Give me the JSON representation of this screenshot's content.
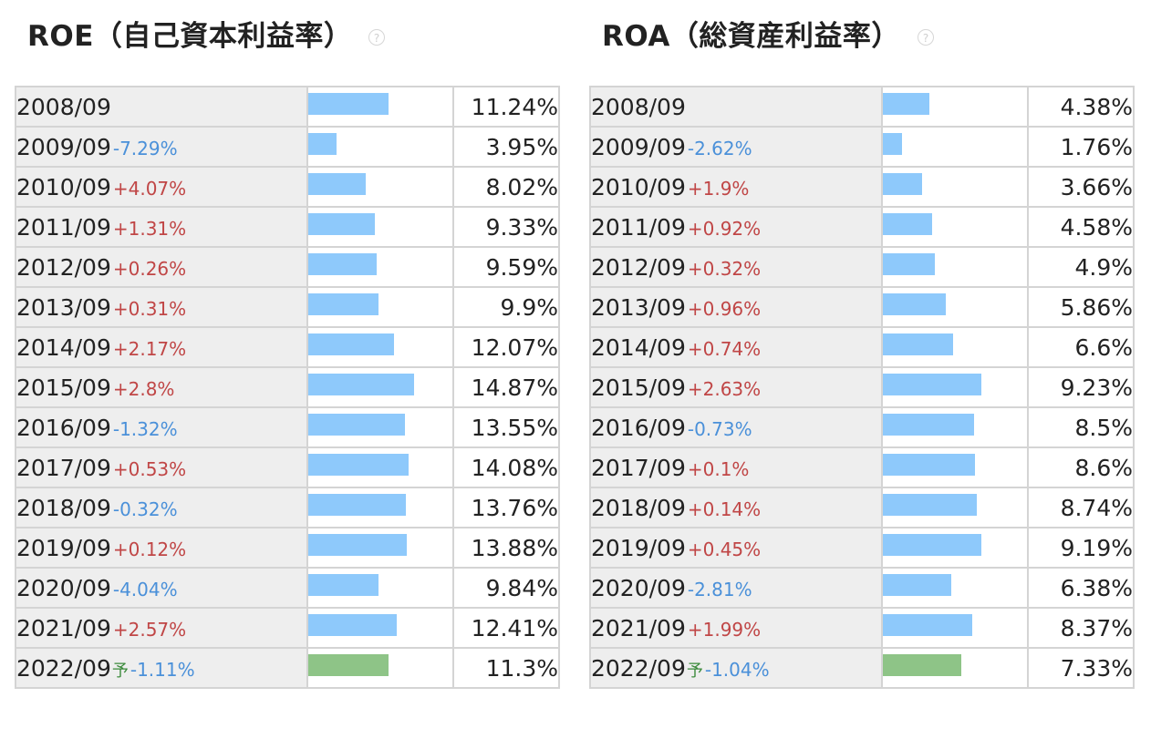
{
  "panels": [
    {
      "id": "roe",
      "title": "ROE（自己資本利益率）",
      "help": "?",
      "bar_max": 20,
      "rows": [
        {
          "year": "2008/09",
          "change": "",
          "dir": "",
          "value": "11.24%",
          "num": 11.24,
          "forecast": false,
          "forecast_mark": ""
        },
        {
          "year": "2009/09",
          "change": "-7.29%",
          "dir": "down",
          "value": "3.95%",
          "num": 3.95,
          "forecast": false,
          "forecast_mark": ""
        },
        {
          "year": "2010/09",
          "change": "+4.07%",
          "dir": "up",
          "value": "8.02%",
          "num": 8.02,
          "forecast": false,
          "forecast_mark": ""
        },
        {
          "year": "2011/09",
          "change": "+1.31%",
          "dir": "up",
          "value": "9.33%",
          "num": 9.33,
          "forecast": false,
          "forecast_mark": ""
        },
        {
          "year": "2012/09",
          "change": "+0.26%",
          "dir": "up",
          "value": "9.59%",
          "num": 9.59,
          "forecast": false,
          "forecast_mark": ""
        },
        {
          "year": "2013/09",
          "change": "+0.31%",
          "dir": "up",
          "value": "9.9%",
          "num": 9.9,
          "forecast": false,
          "forecast_mark": ""
        },
        {
          "year": "2014/09",
          "change": "+2.17%",
          "dir": "up",
          "value": "12.07%",
          "num": 12.07,
          "forecast": false,
          "forecast_mark": ""
        },
        {
          "year": "2015/09",
          "change": "+2.8%",
          "dir": "up",
          "value": "14.87%",
          "num": 14.87,
          "forecast": false,
          "forecast_mark": ""
        },
        {
          "year": "2016/09",
          "change": "-1.32%",
          "dir": "down",
          "value": "13.55%",
          "num": 13.55,
          "forecast": false,
          "forecast_mark": ""
        },
        {
          "year": "2017/09",
          "change": "+0.53%",
          "dir": "up",
          "value": "14.08%",
          "num": 14.08,
          "forecast": false,
          "forecast_mark": ""
        },
        {
          "year": "2018/09",
          "change": "-0.32%",
          "dir": "down",
          "value": "13.76%",
          "num": 13.76,
          "forecast": false,
          "forecast_mark": ""
        },
        {
          "year": "2019/09",
          "change": "+0.12%",
          "dir": "up",
          "value": "13.88%",
          "num": 13.88,
          "forecast": false,
          "forecast_mark": ""
        },
        {
          "year": "2020/09",
          "change": "-4.04%",
          "dir": "down",
          "value": "9.84%",
          "num": 9.84,
          "forecast": false,
          "forecast_mark": ""
        },
        {
          "year": "2021/09",
          "change": "+2.57%",
          "dir": "up",
          "value": "12.41%",
          "num": 12.41,
          "forecast": false,
          "forecast_mark": ""
        },
        {
          "year": "2022/09",
          "change": "-1.11%",
          "dir": "down",
          "value": "11.3%",
          "num": 11.3,
          "forecast": true,
          "forecast_mark": "予"
        }
      ]
    },
    {
      "id": "roa",
      "title": "ROA（総資産利益率）",
      "help": "?",
      "bar_max": 13.3,
      "rows": [
        {
          "year": "2008/09",
          "change": "",
          "dir": "",
          "value": "4.38%",
          "num": 4.38,
          "forecast": false,
          "forecast_mark": ""
        },
        {
          "year": "2009/09",
          "change": "-2.62%",
          "dir": "down",
          "value": "1.76%",
          "num": 1.76,
          "forecast": false,
          "forecast_mark": ""
        },
        {
          "year": "2010/09",
          "change": "+1.9%",
          "dir": "up",
          "value": "3.66%",
          "num": 3.66,
          "forecast": false,
          "forecast_mark": ""
        },
        {
          "year": "2011/09",
          "change": "+0.92%",
          "dir": "up",
          "value": "4.58%",
          "num": 4.58,
          "forecast": false,
          "forecast_mark": ""
        },
        {
          "year": "2012/09",
          "change": "+0.32%",
          "dir": "up",
          "value": "4.9%",
          "num": 4.9,
          "forecast": false,
          "forecast_mark": ""
        },
        {
          "year": "2013/09",
          "change": "+0.96%",
          "dir": "up",
          "value": "5.86%",
          "num": 5.86,
          "forecast": false,
          "forecast_mark": ""
        },
        {
          "year": "2014/09",
          "change": "+0.74%",
          "dir": "up",
          "value": "6.6%",
          "num": 6.6,
          "forecast": false,
          "forecast_mark": ""
        },
        {
          "year": "2015/09",
          "change": "+2.63%",
          "dir": "up",
          "value": "9.23%",
          "num": 9.23,
          "forecast": false,
          "forecast_mark": ""
        },
        {
          "year": "2016/09",
          "change": "-0.73%",
          "dir": "down",
          "value": "8.5%",
          "num": 8.5,
          "forecast": false,
          "forecast_mark": ""
        },
        {
          "year": "2017/09",
          "change": "+0.1%",
          "dir": "up",
          "value": "8.6%",
          "num": 8.6,
          "forecast": false,
          "forecast_mark": ""
        },
        {
          "year": "2018/09",
          "change": "+0.14%",
          "dir": "up",
          "value": "8.74%",
          "num": 8.74,
          "forecast": false,
          "forecast_mark": ""
        },
        {
          "year": "2019/09",
          "change": "+0.45%",
          "dir": "up",
          "value": "9.19%",
          "num": 9.19,
          "forecast": false,
          "forecast_mark": ""
        },
        {
          "year": "2020/09",
          "change": "-2.81%",
          "dir": "down",
          "value": "6.38%",
          "num": 6.38,
          "forecast": false,
          "forecast_mark": ""
        },
        {
          "year": "2021/09",
          "change": "+1.99%",
          "dir": "up",
          "value": "8.37%",
          "num": 8.37,
          "forecast": false,
          "forecast_mark": ""
        },
        {
          "year": "2022/09",
          "change": "-1.04%",
          "dir": "down",
          "value": "7.33%",
          "num": 7.33,
          "forecast": true,
          "forecast_mark": "予"
        }
      ]
    }
  ],
  "colors": {
    "bar_actual": "#8ec9fb",
    "bar_forecast": "#8ec487",
    "change_up": "#c04646",
    "change_down": "#4a90d9",
    "label_bg": "#eeeeee"
  }
}
